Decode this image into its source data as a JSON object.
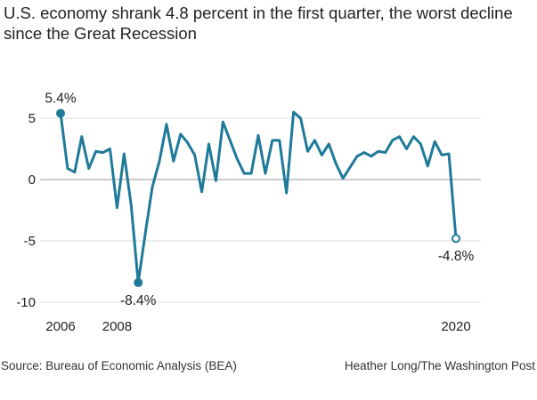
{
  "title": "U.S. economy shrank 4.8 percent in the first quarter, the worst decline since the Great Recession",
  "source": "Source: Bureau of Economic Analysis (BEA)",
  "credit": "Heather Long/The Washington Post",
  "colors": {
    "line": "#1f7a99",
    "grid": "#dddddd",
    "zero": "#999999",
    "text": "#222222"
  },
  "chart_data": {
    "type": "line",
    "title": "U.S. economy shrank 4.8 percent in the first quarter, the worst decline since the Great Recession",
    "xlabel": "",
    "ylabel": "",
    "xlim": [
      2006,
      2020
    ],
    "ylim": [
      -10,
      5
    ],
    "y_ticks": [
      {
        "value": 5,
        "label": "5"
      },
      {
        "value": 0,
        "label": "0"
      },
      {
        "value": -5,
        "label": "-5"
      },
      {
        "value": -10,
        "label": "-10"
      }
    ],
    "x_ticks": [
      {
        "value": 2006,
        "label": "2006"
      },
      {
        "value": 2008,
        "label": "2008"
      },
      {
        "value": 2020,
        "label": "2020"
      }
    ],
    "grid": true,
    "annotations": [
      {
        "label": "5.4%",
        "index": 0,
        "marker": "filled",
        "position": "above"
      },
      {
        "label": "-8.4%",
        "index": 11,
        "marker": "filled",
        "position": "below"
      },
      {
        "label": "-4.8%",
        "index": 56,
        "marker": "open",
        "position": "below"
      }
    ],
    "series": [
      {
        "x_start": 2006,
        "x_step": 0.25,
        "values": [
          5.4,
          0.9,
          0.6,
          3.5,
          0.9,
          2.3,
          2.2,
          2.5,
          -2.3,
          2.1,
          -2.1,
          -8.4,
          -4.4,
          -0.6,
          1.5,
          4.5,
          1.5,
          3.7,
          3.0,
          2.0,
          -1.0,
          2.9,
          -0.1,
          4.7,
          3.2,
          1.7,
          0.5,
          0.5,
          3.6,
          0.5,
          3.2,
          3.2,
          -1.1,
          5.5,
          5.0,
          2.3,
          3.2,
          2.0,
          2.9,
          1.3,
          0.1,
          1.0,
          1.9,
          2.2,
          1.9,
          2.3,
          2.2,
          3.2,
          3.5,
          2.5,
          3.5,
          2.9,
          1.1,
          3.1,
          2.0,
          2.1,
          -4.8
        ]
      }
    ]
  }
}
